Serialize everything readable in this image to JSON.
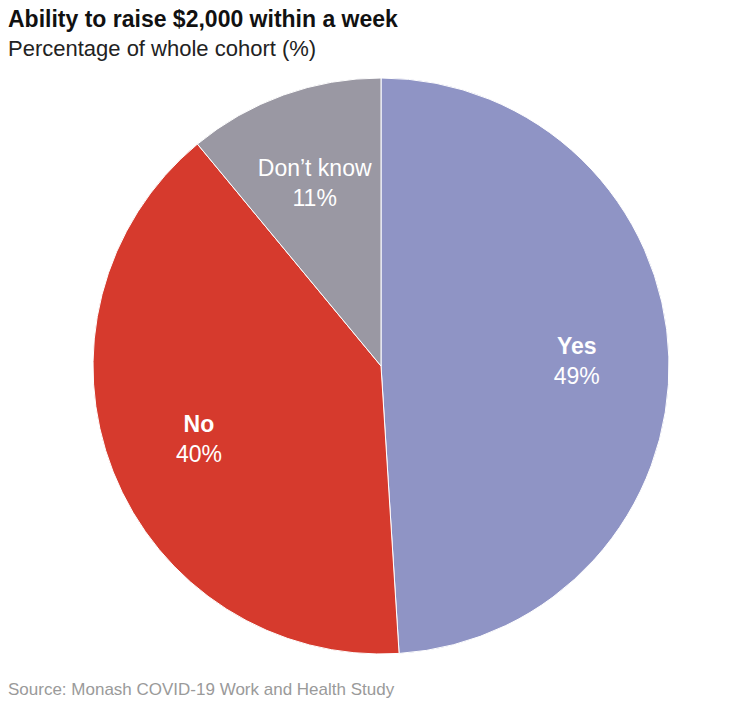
{
  "chart_data": {
    "type": "pie",
    "title": "Ability to raise $2,000 within a week",
    "subtitle": "Percentage of whole cohort (%)",
    "categories": [
      "Yes",
      "No",
      "Don’t know"
    ],
    "values": [
      49,
      40,
      11
    ],
    "value_labels": [
      "49%",
      "40%",
      "11%"
    ],
    "colors": [
      "#8f94c5",
      "#d63a2d",
      "#9a98a3"
    ],
    "data_labels": true,
    "source": "Source: Monash COVID-19 Work and Health Study"
  }
}
